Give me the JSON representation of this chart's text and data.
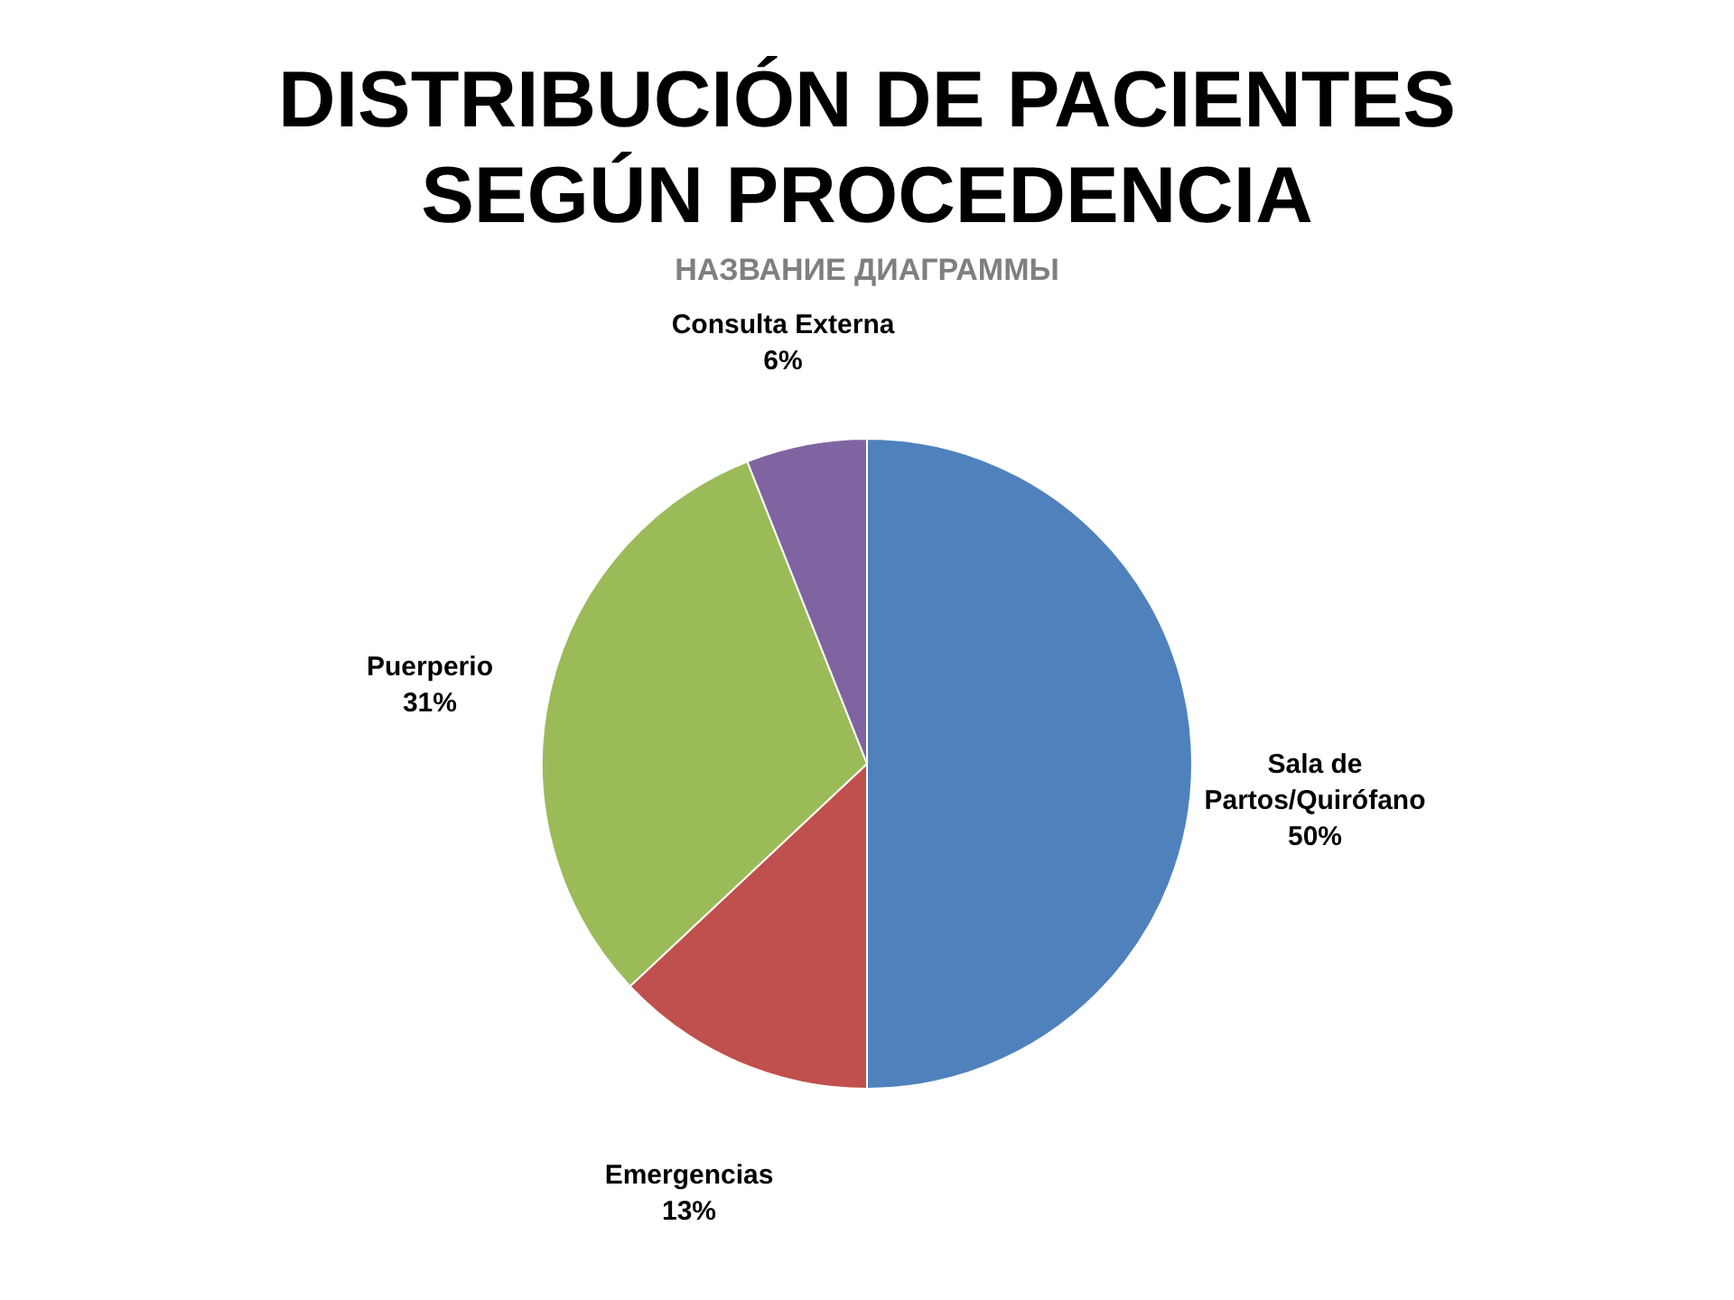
{
  "chart_data": {
    "type": "pie",
    "title": "DISTRIBUCIÓN DE PACIENTES SEGÚN PROCEDENCIA",
    "subtitle": "НАЗВАНИЕ ДИАГРАММЫ",
    "categories": [
      "Sala de Partos/Quirófano",
      "Emergencias",
      "Puerperio",
      "Consulta Externa"
    ],
    "values": [
      50,
      13,
      31,
      6
    ],
    "value_labels": [
      "50%",
      "13%",
      "31%",
      "6%"
    ],
    "colors": [
      "#4f81bd",
      "#c0504d",
      "#9bbb59",
      "#8064a2"
    ],
    "legend": false
  }
}
